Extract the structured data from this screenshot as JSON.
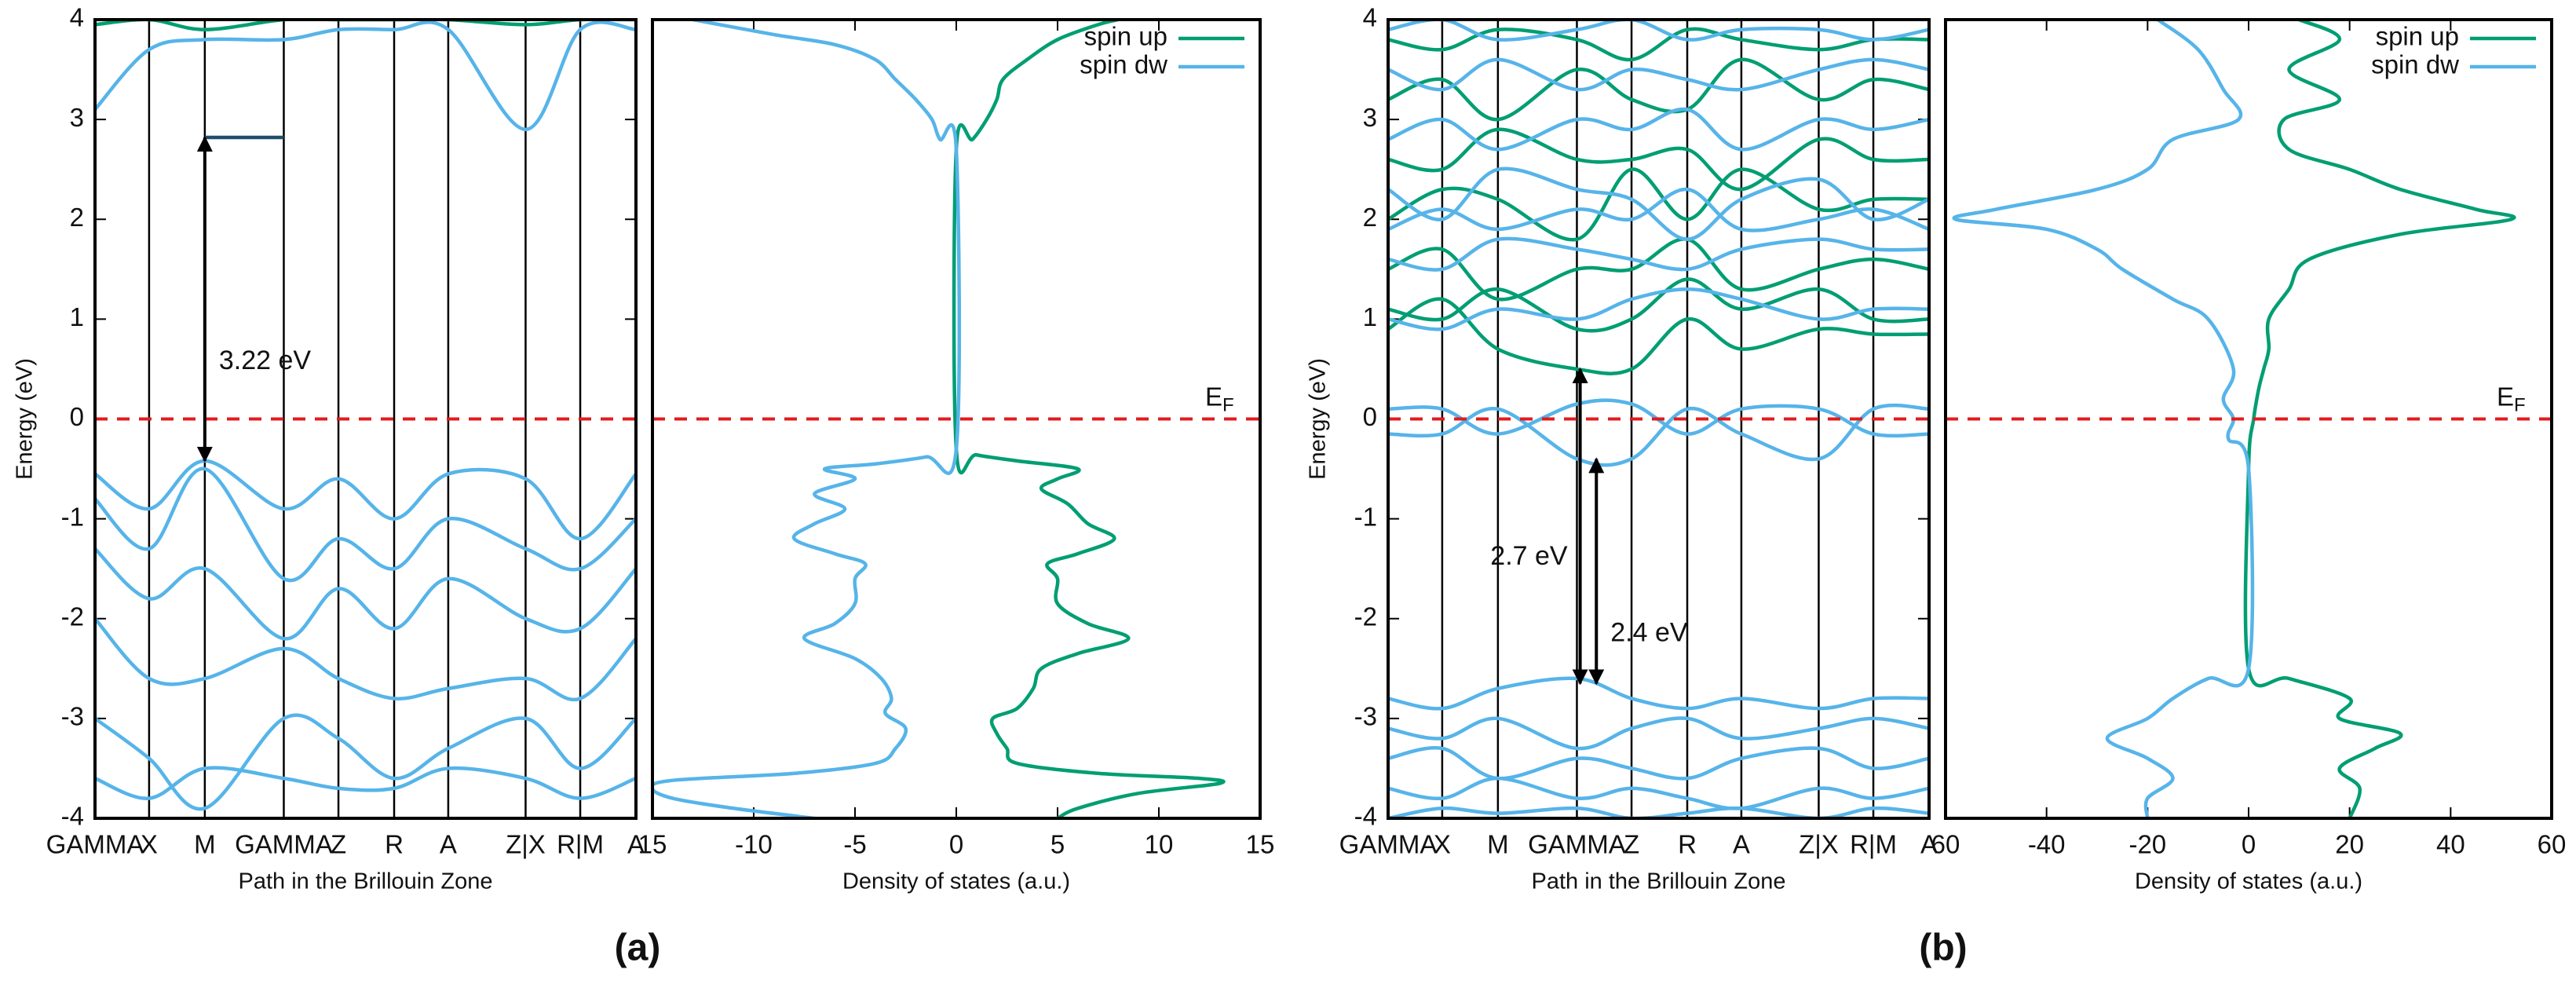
{
  "figure_labels": [
    "(a)",
    "(b)"
  ],
  "chart_data": [
    {
      "type": "line",
      "x_label": "Path in the Brillouin Zone",
      "y_label": "Energy (eV)",
      "xlim": [
        0,
        1
      ],
      "ylim": [
        -4,
        4
      ],
      "yticks": [
        -4,
        -3,
        -2,
        -1,
        0,
        1,
        2,
        3,
        4
      ],
      "xticks": [
        {
          "value": 0,
          "label": "GAMMA"
        },
        {
          "value": 0.1,
          "label": "X"
        },
        {
          "value": 0.203,
          "label": "M"
        },
        {
          "value": 0.349,
          "label": "GAMMA"
        },
        {
          "value": 0.45,
          "label": "Z"
        },
        {
          "value": 0.553,
          "label": "R"
        },
        {
          "value": 0.653,
          "label": "A"
        },
        {
          "value": 0.796,
          "label": "Z|X"
        },
        {
          "value": 0.897,
          "label": "R|M"
        },
        {
          "value": 1,
          "label": "A"
        }
      ],
      "kpath_lines": true,
      "hline": 0,
      "hline_color": "#e41a1c",
      "x": [
        0,
        0.1,
        0.203,
        0.349,
        0.45,
        0.553,
        0.653,
        0.796,
        0.897,
        1
      ],
      "series": [
        {
          "color": "#56b4e9",
          "values": [
            3.1,
            3.7,
            3.8,
            3.8,
            3.9,
            3.9,
            3.9,
            2.9,
            3.9,
            3.9
          ]
        },
        {
          "color": "#009e73",
          "values": [
            3.95,
            4,
            3.9,
            4,
            4,
            4,
            4,
            3.95,
            4,
            4
          ]
        },
        {
          "color": "#56b4e9",
          "values": [
            -0.55,
            -0.9,
            -0.42,
            -0.9,
            -0.6,
            -1.0,
            -0.55,
            -0.6,
            -1.2,
            -0.55
          ]
        },
        {
          "color": "#56b4e9",
          "values": [
            -0.8,
            -1.3,
            -0.5,
            -1.6,
            -1.2,
            -1.5,
            -1.0,
            -1.3,
            -1.5,
            -1.0
          ]
        },
        {
          "color": "#56b4e9",
          "values": [
            -1.3,
            -1.8,
            -1.5,
            -2.2,
            -1.7,
            -2.1,
            -1.6,
            -2.0,
            -2.1,
            -1.5
          ]
        },
        {
          "color": "#56b4e9",
          "values": [
            -2.0,
            -2.6,
            -2.6,
            -2.3,
            -2.6,
            -2.8,
            -2.7,
            -2.6,
            -2.8,
            -2.2
          ]
        },
        {
          "color": "#56b4e9",
          "values": [
            -3.0,
            -3.4,
            -3.9,
            -3.0,
            -3.2,
            -3.6,
            -3.3,
            -3.0,
            -3.5,
            -3.0
          ]
        },
        {
          "color": "#56b4e9",
          "values": [
            -3.6,
            -3.8,
            -3.5,
            -3.6,
            -3.7,
            -3.7,
            -3.5,
            -3.6,
            -3.8,
            -3.6
          ]
        }
      ],
      "guides": [
        {
          "x": [
            0.203,
            0.349
          ],
          "y": 2.82,
          "color": "#1f4e6b"
        }
      ],
      "annotations": [
        {
          "text": "3.22 eV",
          "x": 0.203,
          "y1": 2.82,
          "y2": -0.42,
          "side": "right"
        }
      ]
    },
    {
      "type": "line",
      "x_label": "Density of states (a.u.)",
      "xlim": [
        -15,
        15
      ],
      "ylim": [
        -4,
        4
      ],
      "xticks": [
        {
          "value": -15,
          "label": "15"
        },
        -10,
        -5,
        0,
        5,
        10,
        15
      ],
      "hline": 0,
      "hline_color": "#e41a1c",
      "legend": "upper right",
      "ef_label": {
        "text": "E",
        "sub": "F"
      },
      "series": [
        {
          "name": "spin up",
          "color": "#009e73",
          "x": [
            5,
            6,
            9,
            13,
            12,
            7,
            3,
            2.5,
            2,
            1.8,
            3,
            3.8,
            4.2,
            6,
            8.5,
            6.5,
            5,
            5,
            4.5,
            6,
            7.8,
            6.5,
            5.5,
            4.2,
            5,
            6,
            3,
            1,
            0,
            0,
            0.8,
            1.5,
            2,
            2.3,
            3.5,
            5,
            7,
            8
          ],
          "values": [
            -4,
            -3.9,
            -3.75,
            -3.65,
            -3.6,
            -3.55,
            -3.45,
            -3.3,
            -3.15,
            -3.0,
            -2.9,
            -2.7,
            -2.5,
            -2.35,
            -2.2,
            -2.05,
            -1.85,
            -1.6,
            -1.45,
            -1.35,
            -1.2,
            -1.05,
            -0.85,
            -0.7,
            -0.6,
            -0.5,
            -0.42,
            -0.36,
            -0.3,
            2.7,
            2.8,
            3.0,
            3.2,
            3.4,
            3.6,
            3.8,
            3.95,
            4
          ]
        },
        {
          "name": "spin dw",
          "color": "#56b4e9",
          "x": [
            -7,
            -11,
            -14,
            -15,
            -14,
            -8,
            -4,
            -3,
            -2.5,
            -3.5,
            -3.2,
            -3.7,
            -5,
            -7.5,
            -6,
            -5,
            -5,
            -4.5,
            -6,
            -8,
            -7,
            -5.5,
            -7,
            -5,
            -6.5,
            -4,
            -1.5,
            0,
            0,
            -0.8,
            -1.2,
            -2,
            -3,
            -4,
            -6,
            -9,
            -13
          ],
          "values": [
            -4,
            -3.9,
            -3.8,
            -3.7,
            -3.62,
            -3.55,
            -3.45,
            -3.3,
            -3.1,
            -2.95,
            -2.8,
            -2.6,
            -2.4,
            -2.2,
            -2.05,
            -1.85,
            -1.6,
            -1.45,
            -1.35,
            -1.2,
            -1.05,
            -0.9,
            -0.75,
            -0.6,
            -0.5,
            -0.45,
            -0.38,
            -0.3,
            2.7,
            2.8,
            3.0,
            3.2,
            3.4,
            3.6,
            3.75,
            3.85,
            4
          ]
        }
      ]
    },
    {
      "type": "line",
      "x_label": "Path in the Brillouin Zone",
      "y_label": "Energy (eV)",
      "xlim": [
        0,
        1
      ],
      "ylim": [
        -4,
        4
      ],
      "yticks": [
        -4,
        -3,
        -2,
        -1,
        0,
        1,
        2,
        3,
        4
      ],
      "xticks": [
        {
          "value": 0,
          "label": "GAMMA"
        },
        {
          "value": 0.1,
          "label": "X"
        },
        {
          "value": 0.203,
          "label": "M"
        },
        {
          "value": 0.349,
          "label": "GAMMA"
        },
        {
          "value": 0.45,
          "label": "Z"
        },
        {
          "value": 0.553,
          "label": "R"
        },
        {
          "value": 0.653,
          "label": "A"
        },
        {
          "value": 0.796,
          "label": "Z|X"
        },
        {
          "value": 0.897,
          "label": "R|M"
        },
        {
          "value": 1,
          "label": "A"
        }
      ],
      "kpath_lines": true,
      "hline": 0,
      "hline_color": "#e41a1c",
      "x": [
        0,
        0.1,
        0.203,
        0.349,
        0.45,
        0.553,
        0.653,
        0.796,
        0.897,
        1
      ],
      "series": [
        {
          "color": "#009e73",
          "values": [
            0.9,
            1.2,
            0.7,
            0.5,
            0.5,
            1.0,
            0.7,
            0.9,
            0.85,
            0.85
          ]
        },
        {
          "color": "#009e73",
          "values": [
            1.1,
            1.0,
            1.3,
            0.9,
            1.0,
            1.4,
            1.1,
            1.3,
            1.0,
            1.0
          ]
        },
        {
          "color": "#009e73",
          "values": [
            1.5,
            1.7,
            1.2,
            1.5,
            1.5,
            1.8,
            1.3,
            1.5,
            1.6,
            1.5
          ]
        },
        {
          "color": "#009e73",
          "values": [
            2.0,
            2.3,
            2.2,
            1.8,
            2.5,
            2.0,
            2.5,
            2.1,
            2.2,
            2.2
          ]
        },
        {
          "color": "#009e73",
          "values": [
            2.6,
            2.5,
            2.9,
            2.6,
            2.6,
            2.7,
            2.3,
            2.8,
            2.6,
            2.6
          ]
        },
        {
          "color": "#009e73",
          "values": [
            3.2,
            3.4,
            3.0,
            3.5,
            3.2,
            3.1,
            3.6,
            3.2,
            3.4,
            3.3
          ]
        },
        {
          "color": "#009e73",
          "values": [
            3.8,
            3.7,
            3.9,
            3.8,
            3.6,
            3.9,
            3.8,
            3.7,
            3.8,
            3.8
          ]
        },
        {
          "color": "#56b4e9",
          "values": [
            1.0,
            0.9,
            1.1,
            1.0,
            1.2,
            1.3,
            1.2,
            1.0,
            1.1,
            1.1
          ]
        },
        {
          "color": "#56b4e9",
          "values": [
            1.6,
            1.5,
            1.8,
            1.7,
            1.6,
            1.5,
            1.7,
            1.8,
            1.7,
            1.7
          ]
        },
        {
          "color": "#56b4e9",
          "values": [
            1.9,
            2.1,
            1.9,
            2.1,
            2.0,
            2.3,
            1.9,
            2.0,
            2.1,
            1.9
          ]
        },
        {
          "color": "#56b4e9",
          "values": [
            2.3,
            2.0,
            2.5,
            2.3,
            2.2,
            1.8,
            2.2,
            2.4,
            2.0,
            2.2
          ]
        },
        {
          "color": "#56b4e9",
          "values": [
            2.8,
            3.0,
            2.7,
            3.0,
            2.9,
            3.1,
            2.7,
            3.0,
            2.9,
            3.0
          ]
        },
        {
          "color": "#56b4e9",
          "values": [
            3.5,
            3.3,
            3.6,
            3.3,
            3.5,
            3.4,
            3.3,
            3.5,
            3.6,
            3.5
          ]
        },
        {
          "color": "#56b4e9",
          "values": [
            3.9,
            4.0,
            3.8,
            3.9,
            4.0,
            3.8,
            3.9,
            3.9,
            3.8,
            3.9
          ]
        },
        {
          "color": "#56b4e9",
          "values": [
            0.1,
            0.1,
            -0.15,
            0.15,
            0.15,
            -0.15,
            0.1,
            0.1,
            -0.15,
            -0.15
          ]
        },
        {
          "color": "#56b4e9",
          "values": [
            -0.15,
            -0.15,
            0.1,
            -0.4,
            -0.4,
            0.1,
            -0.15,
            -0.4,
            0.1,
            0.1
          ]
        },
        {
          "color": "#56b4e9",
          "values": [
            -2.8,
            -2.9,
            -2.7,
            -2.6,
            -2.8,
            -2.9,
            -2.8,
            -2.9,
            -2.8,
            -2.8
          ]
        },
        {
          "color": "#56b4e9",
          "values": [
            -3.1,
            -3.2,
            -3.0,
            -3.3,
            -3.1,
            -3.0,
            -3.2,
            -3.1,
            -3.0,
            -3.1
          ]
        },
        {
          "color": "#56b4e9",
          "values": [
            -3.4,
            -3.3,
            -3.6,
            -3.4,
            -3.5,
            -3.6,
            -3.4,
            -3.3,
            -3.5,
            -3.4
          ]
        },
        {
          "color": "#56b4e9",
          "values": [
            -3.7,
            -3.8,
            -3.6,
            -3.8,
            -3.7,
            -3.8,
            -3.9,
            -3.7,
            -3.8,
            -3.7
          ]
        },
        {
          "color": "#56b4e9",
          "values": [
            -4,
            -3.9,
            -3.95,
            -3.9,
            -4,
            -3.95,
            -3.9,
            -4,
            -3.9,
            -3.95
          ]
        }
      ],
      "annotations": [
        {
          "text": "2.7 eV",
          "x": 0.355,
          "y1": 0.5,
          "y2": -2.65,
          "side": "left"
        },
        {
          "text": "2.4 eV",
          "x": 0.385,
          "y1": -0.4,
          "y2": -2.65,
          "side": "right"
        }
      ]
    },
    {
      "type": "line",
      "x_label": "Density of states (a.u.)",
      "xlim": [
        -60,
        60
      ],
      "ylim": [
        -4,
        4
      ],
      "xticks": [
        {
          "value": -60,
          "label": "60"
        },
        -40,
        -20,
        0,
        20,
        40,
        60
      ],
      "hline": 0,
      "hline_color": "#e41a1c",
      "legend": "upper right",
      "ef_label": {
        "text": "E",
        "sub": "F"
      },
      "series": [
        {
          "name": "spin up",
          "color": "#009e73",
          "x": [
            20,
            22,
            18,
            25,
            30,
            18,
            20,
            8,
            0,
            0,
            1,
            2,
            3,
            4,
            4,
            8,
            12,
            30,
            52,
            45,
            30,
            20,
            8,
            7,
            18,
            8,
            18,
            10
          ],
          "values": [
            -4,
            -3.7,
            -3.5,
            -3.3,
            -3.15,
            -3.0,
            -2.8,
            -2.6,
            -2.5,
            -0.5,
            0,
            0.3,
            0.5,
            0.7,
            1.0,
            1.3,
            1.6,
            1.85,
            2.0,
            2.1,
            2.3,
            2.5,
            2.7,
            3.0,
            3.2,
            3.5,
            3.8,
            4
          ]
        },
        {
          "name": "spin dw",
          "color": "#56b4e9",
          "x": [
            -20,
            -20,
            -15,
            -20,
            -28,
            -20,
            -15,
            -8,
            0,
            0,
            -4,
            -3,
            -5,
            -3,
            -8,
            -15,
            -25,
            -30,
            -40,
            -58,
            -50,
            -30,
            -20,
            -15,
            -2,
            -5,
            -10,
            -18
          ],
          "values": [
            -4,
            -3.8,
            -3.6,
            -3.4,
            -3.2,
            -3.0,
            -2.8,
            -2.6,
            -2.5,
            -0.5,
            -0.2,
            0,
            0.2,
            0.5,
            1.0,
            1.2,
            1.5,
            1.7,
            1.9,
            2.0,
            2.1,
            2.3,
            2.5,
            2.8,
            3.0,
            3.3,
            3.7,
            4
          ]
        }
      ]
    }
  ]
}
